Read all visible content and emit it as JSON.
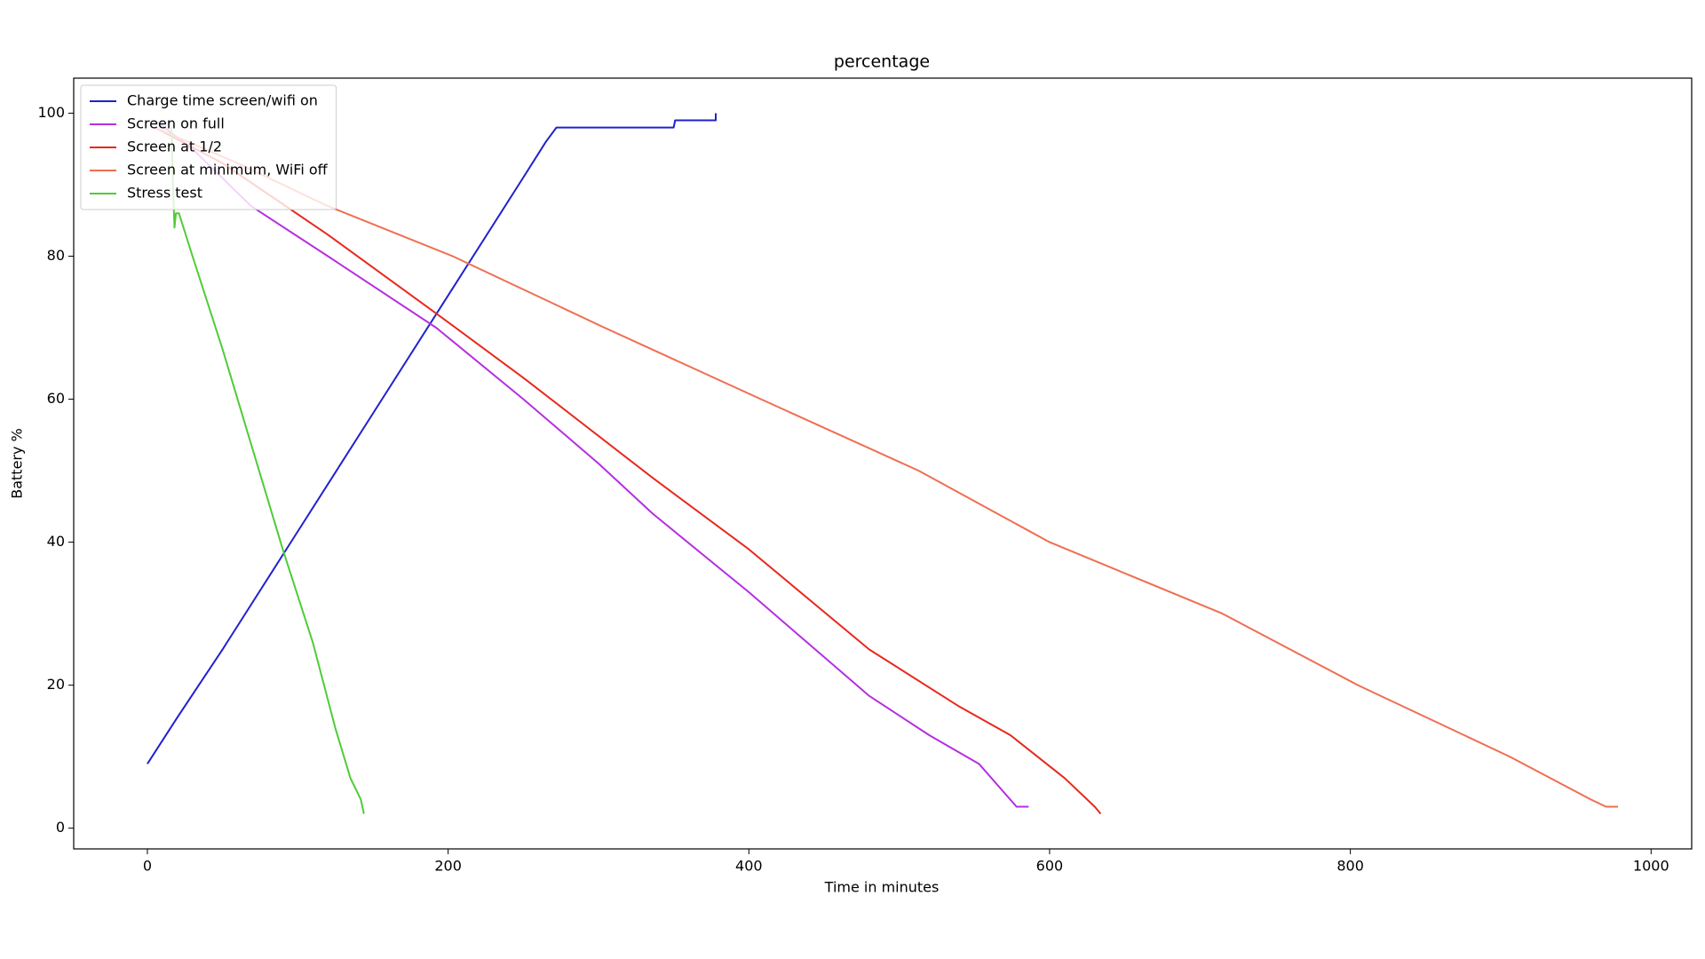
{
  "chart_data": {
    "type": "line",
    "title": "percentage",
    "x_label": "Time in minutes",
    "y_label": "Battery %",
    "xlim": [
      -49,
      1027
    ],
    "ylim": [
      -2.9,
      104.9
    ],
    "xticks": [
      0,
      200,
      400,
      600,
      800,
      1000
    ],
    "yticks": [
      0,
      20,
      40,
      60,
      80,
      100
    ],
    "legend": "upper left",
    "grid": false,
    "series": [
      {
        "name": "Charge time screen/wifi on",
        "color": "#1f22cc",
        "x": [
          0,
          20,
          50,
          100,
          150,
          200,
          250,
          265,
          272,
          350,
          351,
          378,
          378
        ],
        "values": [
          9,
          15.5,
          25,
          41.5,
          58,
          74.5,
          91,
          96,
          98,
          98,
          99,
          99,
          100
        ]
      },
      {
        "name": "Screen on full",
        "color": "#b62fe0",
        "x": [
          5,
          30,
          69,
          120,
          192,
          250,
          300,
          336,
          400,
          480,
          520,
          553,
          578,
          586
        ],
        "values": [
          99,
          95,
          87,
          80,
          70,
          60,
          51,
          44,
          33,
          18.5,
          13,
          9,
          3,
          3
        ]
      },
      {
        "name": "Screen at 1/2",
        "color": "#e8291c",
        "x": [
          5,
          50,
          120,
          192,
          250,
          336,
          400,
          480,
          540,
          574,
          610,
          630,
          634
        ],
        "values": [
          98,
          93,
          83,
          72,
          63,
          49,
          39,
          25,
          17,
          13,
          7,
          3,
          2
        ]
      },
      {
        "name": "Screen at minimum, WiFi off",
        "color": "#f06e50",
        "x": [
          5,
          60,
          120,
          203,
          304,
          408,
          513,
          600,
          715,
          805,
          906,
          960,
          970,
          978
        ],
        "values": [
          98,
          93,
          87,
          80,
          70,
          60,
          50,
          40,
          30,
          20,
          10,
          4,
          3,
          3
        ]
      },
      {
        "name": "Stress test",
        "color": "#4fcc35",
        "x": [
          16,
          17,
          18,
          19,
          21,
          30,
          50,
          70,
          90,
          110,
          125,
          135,
          142,
          144
        ],
        "values": [
          98,
          90,
          84,
          86,
          86,
          80,
          67,
          53,
          39,
          26,
          14,
          7,
          4,
          2
        ]
      }
    ]
  }
}
